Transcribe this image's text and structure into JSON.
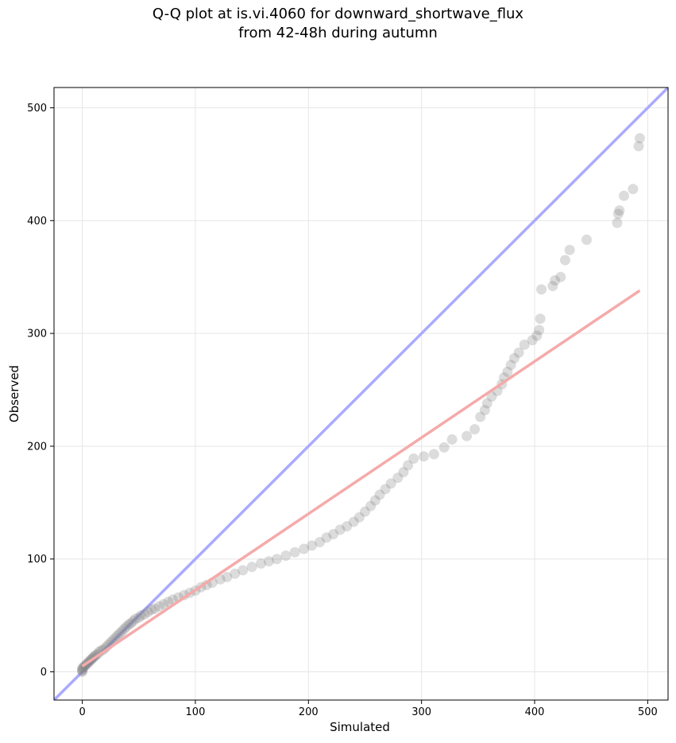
{
  "chart_data": {
    "type": "scatter",
    "title_line1": "Q-Q plot at is.vi.4060 for downward_shortwave_flux",
    "title_line2": "from 42-48h during autumn",
    "xlabel": "Simulated",
    "ylabel": "Observed",
    "xlim": [
      -25,
      518
    ],
    "ylim": [
      -25,
      518
    ],
    "xticks": [
      0,
      100,
      200,
      300,
      400,
      500
    ],
    "yticks": [
      0,
      100,
      200,
      300,
      400,
      500
    ],
    "grid": true,
    "identity_line_color": "#aaaaff",
    "fit_line_color": "#f5aaaa",
    "point_color": "#808080",
    "fit_line": {
      "x": [
        0,
        493
      ],
      "y": [
        5,
        338
      ]
    },
    "points": [
      {
        "x": 0,
        "y": 0
      },
      {
        "x": 0,
        "y": 1
      },
      {
        "x": 0,
        "y": 2
      },
      {
        "x": 0,
        "y": 3
      },
      {
        "x": 1,
        "y": 4
      },
      {
        "x": 2,
        "y": 5
      },
      {
        "x": 3,
        "y": 6
      },
      {
        "x": 4,
        "y": 7
      },
      {
        "x": 5,
        "y": 8
      },
      {
        "x": 6,
        "y": 9
      },
      {
        "x": 7,
        "y": 10
      },
      {
        "x": 8,
        "y": 11
      },
      {
        "x": 9,
        "y": 12
      },
      {
        "x": 10,
        "y": 13
      },
      {
        "x": 11,
        "y": 14
      },
      {
        "x": 12,
        "y": 15
      },
      {
        "x": 14,
        "y": 16
      },
      {
        "x": 15,
        "y": 18
      },
      {
        "x": 17,
        "y": 19
      },
      {
        "x": 19,
        "y": 20
      },
      {
        "x": 21,
        "y": 22
      },
      {
        "x": 23,
        "y": 24
      },
      {
        "x": 25,
        "y": 26
      },
      {
        "x": 27,
        "y": 28
      },
      {
        "x": 29,
        "y": 30
      },
      {
        "x": 31,
        "y": 32
      },
      {
        "x": 33,
        "y": 34
      },
      {
        "x": 35,
        "y": 36
      },
      {
        "x": 37,
        "y": 38
      },
      {
        "x": 39,
        "y": 40
      },
      {
        "x": 41,
        "y": 42
      },
      {
        "x": 43,
        "y": 43
      },
      {
        "x": 45,
        "y": 45
      },
      {
        "x": 47,
        "y": 47
      },
      {
        "x": 50,
        "y": 48
      },
      {
        "x": 52,
        "y": 50
      },
      {
        "x": 55,
        "y": 51
      },
      {
        "x": 58,
        "y": 53
      },
      {
        "x": 61,
        "y": 55
      },
      {
        "x": 64,
        "y": 56
      },
      {
        "x": 68,
        "y": 58
      },
      {
        "x": 72,
        "y": 60
      },
      {
        "x": 76,
        "y": 62
      },
      {
        "x": 80,
        "y": 64
      },
      {
        "x": 85,
        "y": 66
      },
      {
        "x": 90,
        "y": 68
      },
      {
        "x": 95,
        "y": 70
      },
      {
        "x": 100,
        "y": 72
      },
      {
        "x": 105,
        "y": 75
      },
      {
        "x": 110,
        "y": 77
      },
      {
        "x": 115,
        "y": 79
      },
      {
        "x": 122,
        "y": 82
      },
      {
        "x": 128,
        "y": 84
      },
      {
        "x": 135,
        "y": 87
      },
      {
        "x": 142,
        "y": 90
      },
      {
        "x": 150,
        "y": 93
      },
      {
        "x": 158,
        "y": 96
      },
      {
        "x": 165,
        "y": 98
      },
      {
        "x": 172,
        "y": 100
      },
      {
        "x": 180,
        "y": 103
      },
      {
        "x": 188,
        "y": 106
      },
      {
        "x": 196,
        "y": 109
      },
      {
        "x": 203,
        "y": 112
      },
      {
        "x": 210,
        "y": 115
      },
      {
        "x": 216,
        "y": 119
      },
      {
        "x": 222,
        "y": 122
      },
      {
        "x": 228,
        "y": 126
      },
      {
        "x": 234,
        "y": 129
      },
      {
        "x": 240,
        "y": 133
      },
      {
        "x": 245,
        "y": 137
      },
      {
        "x": 250,
        "y": 142
      },
      {
        "x": 255,
        "y": 147
      },
      {
        "x": 259,
        "y": 152
      },
      {
        "x": 263,
        "y": 157
      },
      {
        "x": 268,
        "y": 162
      },
      {
        "x": 273,
        "y": 167
      },
      {
        "x": 279,
        "y": 172
      },
      {
        "x": 284,
        "y": 177
      },
      {
        "x": 288,
        "y": 183
      },
      {
        "x": 293,
        "y": 189
      },
      {
        "x": 302,
        "y": 191
      },
      {
        "x": 311,
        "y": 193
      },
      {
        "x": 320,
        "y": 199
      },
      {
        "x": 327,
        "y": 206
      },
      {
        "x": 340,
        "y": 209
      },
      {
        "x": 347,
        "y": 215
      },
      {
        "x": 352,
        "y": 226
      },
      {
        "x": 356,
        "y": 232
      },
      {
        "x": 358,
        "y": 238
      },
      {
        "x": 362,
        "y": 244
      },
      {
        "x": 367,
        "y": 249
      },
      {
        "x": 371,
        "y": 255
      },
      {
        "x": 373,
        "y": 261
      },
      {
        "x": 376,
        "y": 266
      },
      {
        "x": 379,
        "y": 272
      },
      {
        "x": 382,
        "y": 278
      },
      {
        "x": 386,
        "y": 283
      },
      {
        "x": 391,
        "y": 290
      },
      {
        "x": 398,
        "y": 294
      },
      {
        "x": 402,
        "y": 298
      },
      {
        "x": 404,
        "y": 303
      },
      {
        "x": 405,
        "y": 313
      },
      {
        "x": 406,
        "y": 339
      },
      {
        "x": 416,
        "y": 342
      },
      {
        "x": 418,
        "y": 347
      },
      {
        "x": 423,
        "y": 350
      },
      {
        "x": 427,
        "y": 365
      },
      {
        "x": 431,
        "y": 374
      },
      {
        "x": 446,
        "y": 383
      },
      {
        "x": 473,
        "y": 398
      },
      {
        "x": 474,
        "y": 406
      },
      {
        "x": 475,
        "y": 409
      },
      {
        "x": 479,
        "y": 422
      },
      {
        "x": 487,
        "y": 428
      },
      {
        "x": 492,
        "y": 466
      },
      {
        "x": 493,
        "y": 473
      }
    ]
  }
}
